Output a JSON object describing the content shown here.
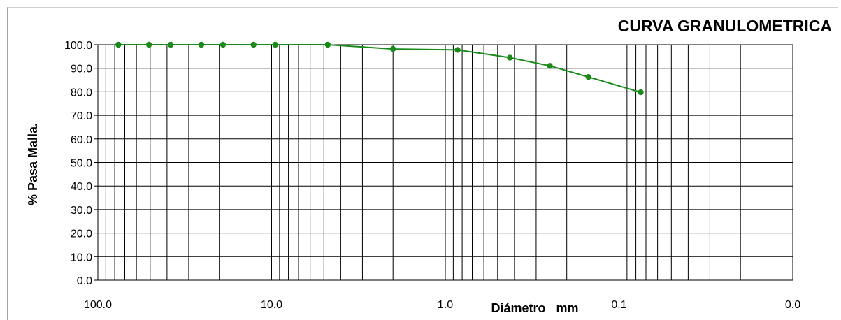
{
  "chart_data": {
    "type": "line",
    "title": "CURVA GRANULOMETRICA",
    "xlabel": "Diámetro   mm",
    "ylabel": "% Pasa Malla.",
    "x_scale": "log",
    "x_reversed": true,
    "xlim": [
      100.0,
      0.01
    ],
    "ylim": [
      0,
      100
    ],
    "x_ticks": [
      {
        "value": 100,
        "label": "100.0"
      },
      {
        "value": 10,
        "label": "10.0"
      },
      {
        "value": 1,
        "label": "1.0"
      },
      {
        "value": 0.1,
        "label": "0.1"
      },
      {
        "value": 0.01,
        "label": "0.0"
      }
    ],
    "y_ticks": [
      {
        "value": 0,
        "label": "0.0"
      },
      {
        "value": 10,
        "label": "10.0"
      },
      {
        "value": 20,
        "label": "20.0"
      },
      {
        "value": 30,
        "label": "30.0"
      },
      {
        "value": 40,
        "label": "40.0"
      },
      {
        "value": 50,
        "label": "50.0"
      },
      {
        "value": 60,
        "label": "60.0"
      },
      {
        "value": 70,
        "label": "70.0"
      },
      {
        "value": 80,
        "label": "80.0"
      },
      {
        "value": 90,
        "label": "90.0"
      },
      {
        "value": 100,
        "label": "100.0"
      }
    ],
    "grid": true,
    "series": [
      {
        "color": "#1a8a1a",
        "points": [
          {
            "x": 76.2,
            "y": 100.0
          },
          {
            "x": 50.8,
            "y": 100.0
          },
          {
            "x": 38.1,
            "y": 100.0
          },
          {
            "x": 25.4,
            "y": 100.0
          },
          {
            "x": 19.05,
            "y": 100.0
          },
          {
            "x": 12.7,
            "y": 100.0
          },
          {
            "x": 9.525,
            "y": 100.0
          },
          {
            "x": 4.75,
            "y": 100.0
          },
          {
            "x": 2.0,
            "y": 98.2
          },
          {
            "x": 0.85,
            "y": 97.8
          },
          {
            "x": 0.425,
            "y": 94.5
          },
          {
            "x": 0.25,
            "y": 91.0
          },
          {
            "x": 0.15,
            "y": 86.3
          },
          {
            "x": 0.075,
            "y": 79.8
          }
        ]
      }
    ]
  }
}
